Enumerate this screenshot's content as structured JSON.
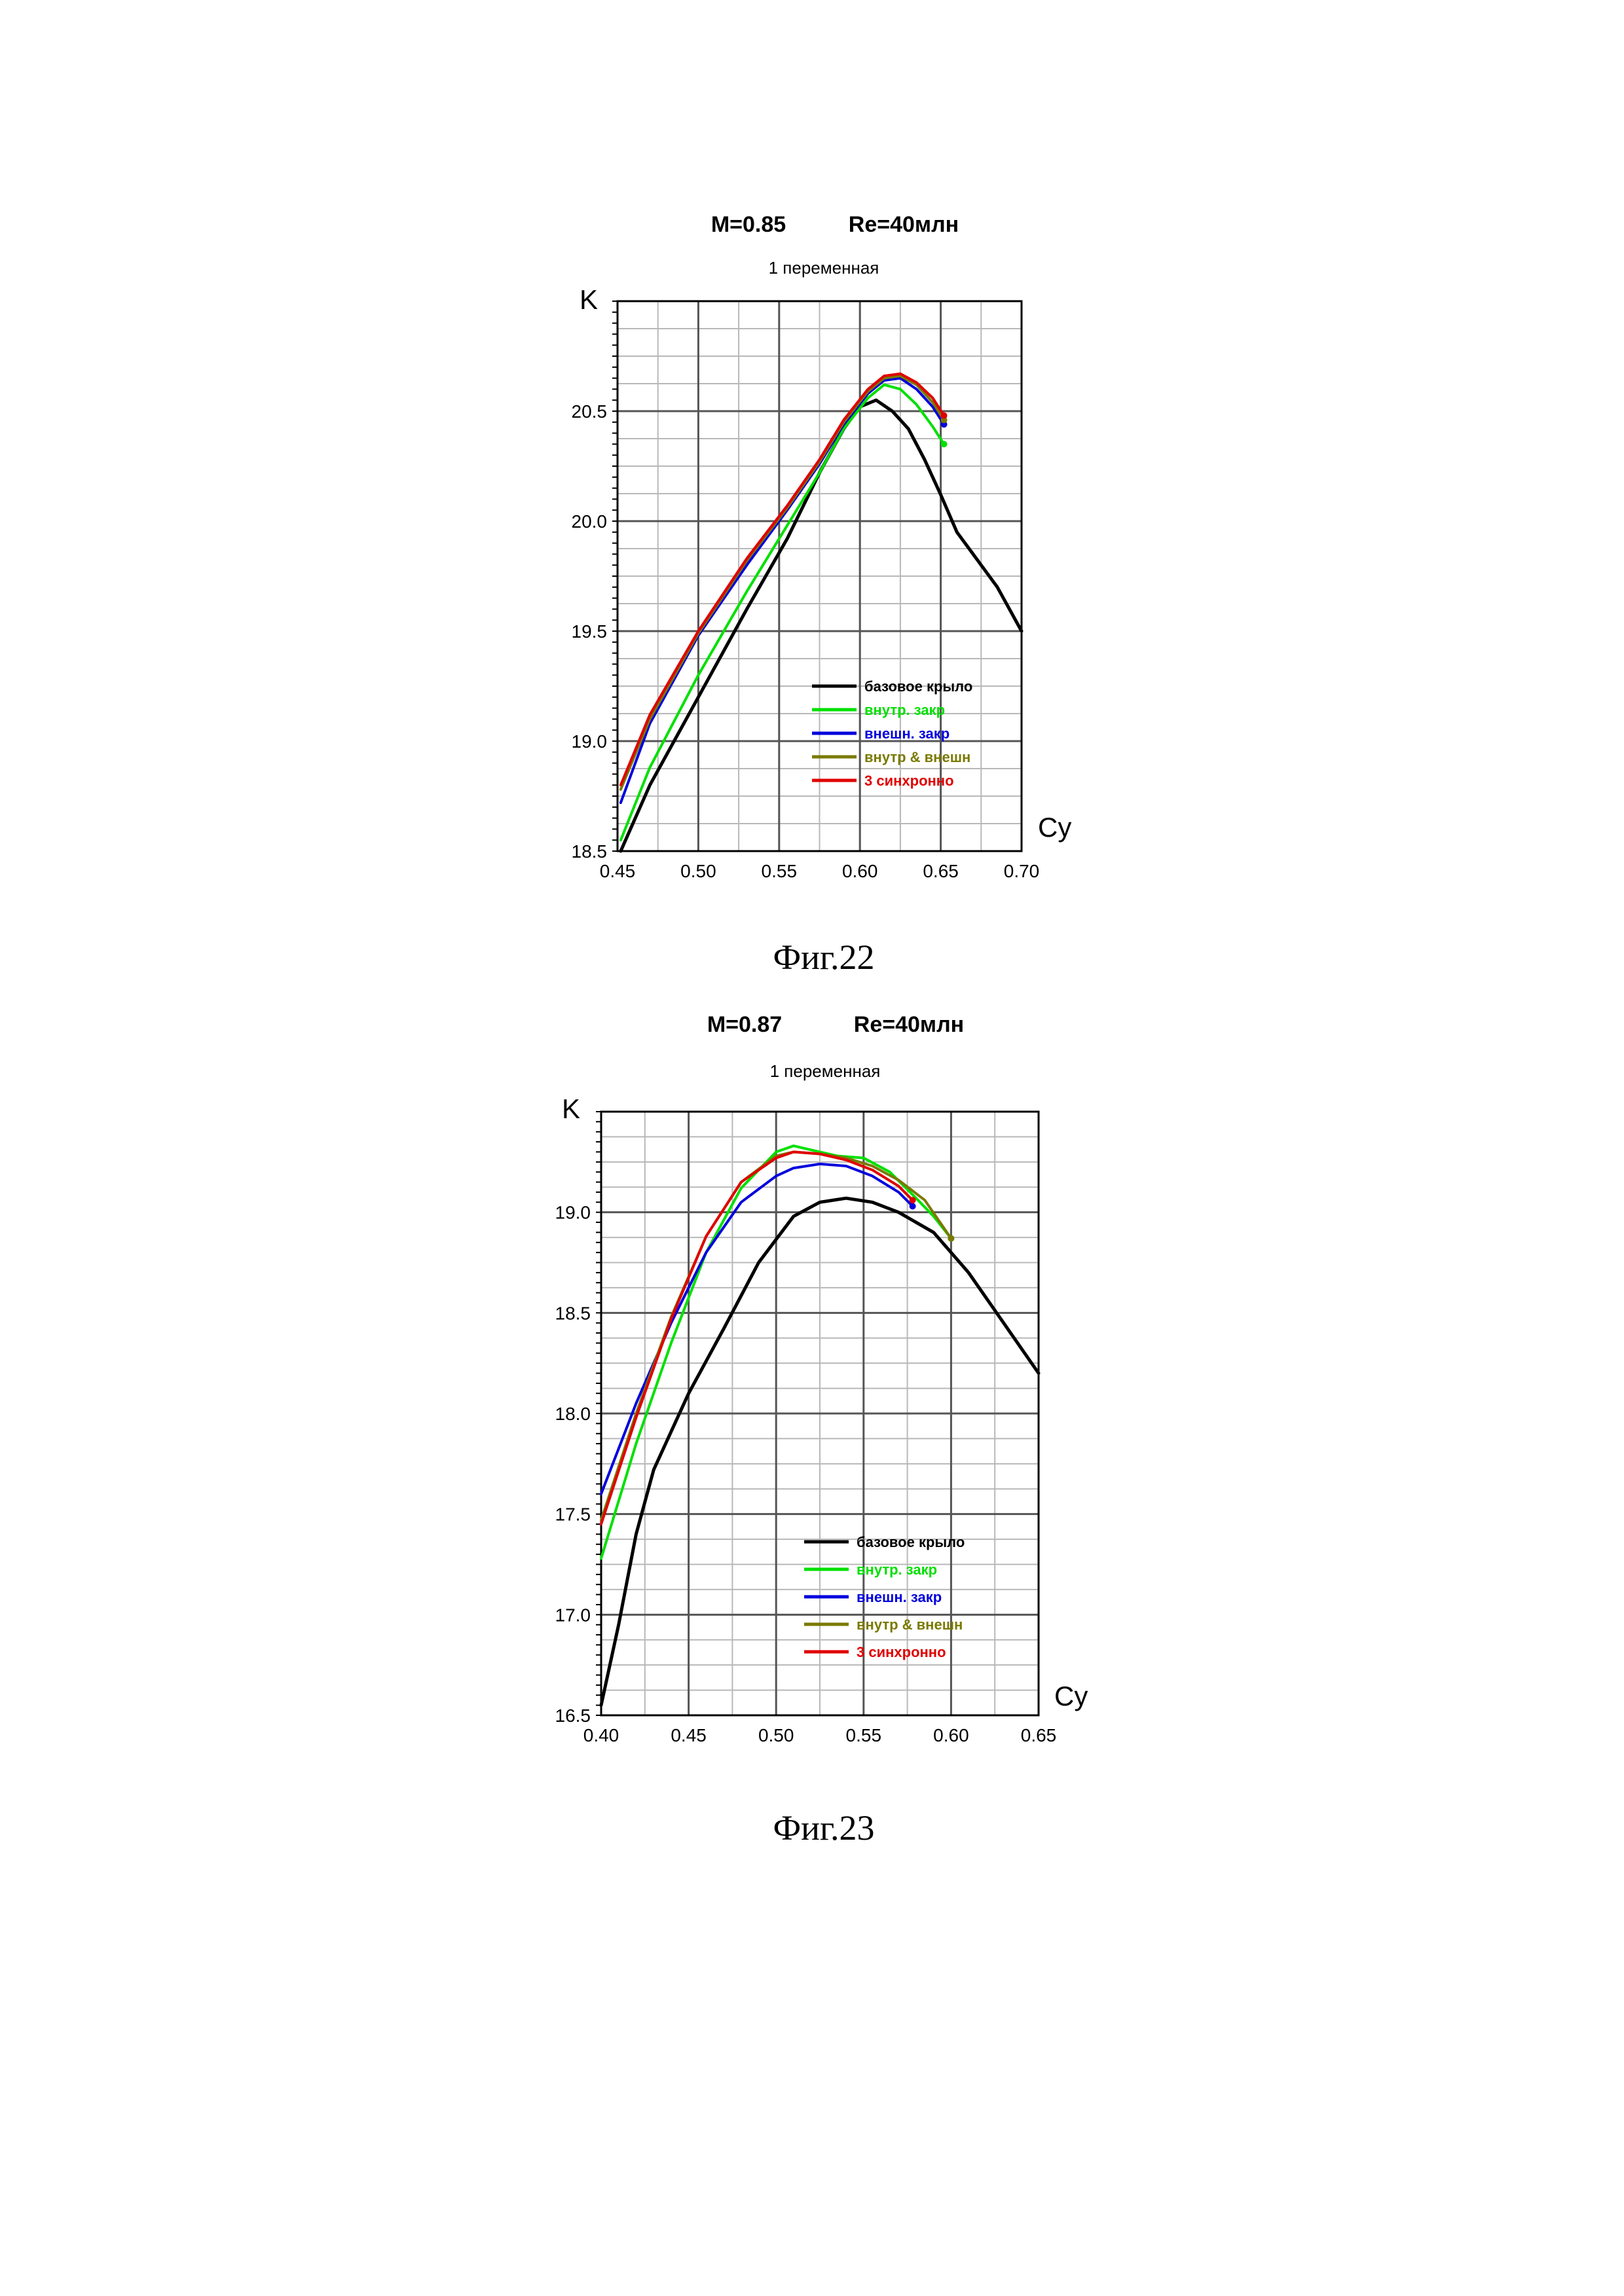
{
  "figures": [
    {
      "caption": "Фиг.22",
      "chart_data": {
        "type": "line",
        "title": "M=0.85",
        "title_right": "Re=40млн",
        "subtitle": "1 переменная",
        "xlabel": "Cy",
        "ylabel": "K",
        "xlim": [
          0.45,
          0.7
        ],
        "ylim": [
          18.5,
          21.0
        ],
        "xticks": [
          "0.45",
          "0.50",
          "0.55",
          "0.60",
          "0.65",
          "0.70"
        ],
        "yticks": [
          "18.5",
          "19.0",
          "19.5",
          "20.0",
          "20.5"
        ],
        "ytick_values": [
          18.5,
          19.0,
          19.5,
          20.0,
          20.5
        ],
        "grid": true,
        "legend_position": "lower-right",
        "series": [
          {
            "name": "базовое крыло",
            "color": "#000000",
            "points": [
              [
                0.452,
                18.5
              ],
              [
                0.47,
                18.8
              ],
              [
                0.5,
                19.2
              ],
              [
                0.53,
                19.6
              ],
              [
                0.555,
                19.92
              ],
              [
                0.575,
                20.22
              ],
              [
                0.59,
                20.42
              ],
              [
                0.6,
                20.52
              ],
              [
                0.61,
                20.55
              ],
              [
                0.62,
                20.5
              ],
              [
                0.63,
                20.42
              ],
              [
                0.64,
                20.28
              ],
              [
                0.65,
                20.12
              ],
              [
                0.66,
                19.95
              ],
              [
                0.67,
                19.85
              ],
              [
                0.685,
                19.7
              ],
              [
                0.7,
                19.5
              ]
            ]
          },
          {
            "name": "внутр. закр",
            "color": "#00e000",
            "points": [
              [
                0.452,
                18.55
              ],
              [
                0.47,
                18.88
              ],
              [
                0.5,
                19.3
              ],
              [
                0.53,
                19.68
              ],
              [
                0.555,
                19.98
              ],
              [
                0.575,
                20.22
              ],
              [
                0.59,
                20.42
              ],
              [
                0.605,
                20.56
              ],
              [
                0.615,
                20.62
              ],
              [
                0.625,
                20.6
              ],
              [
                0.635,
                20.53
              ],
              [
                0.645,
                20.43
              ],
              [
                0.652,
                20.35
              ]
            ]
          },
          {
            "name": "внешн. закр",
            "color": "#0000dd",
            "points": [
              [
                0.452,
                18.72
              ],
              [
                0.47,
                19.08
              ],
              [
                0.5,
                19.48
              ],
              [
                0.53,
                19.8
              ],
              [
                0.555,
                20.05
              ],
              [
                0.575,
                20.26
              ],
              [
                0.59,
                20.44
              ],
              [
                0.605,
                20.58
              ],
              [
                0.615,
                20.64
              ],
              [
                0.625,
                20.65
              ],
              [
                0.635,
                20.6
              ],
              [
                0.645,
                20.52
              ],
              [
                0.652,
                20.44
              ]
            ]
          },
          {
            "name": "внутр & внешн",
            "color": "#7a7a00",
            "points": [
              [
                0.452,
                18.78
              ],
              [
                0.47,
                19.1
              ],
              [
                0.5,
                19.49
              ],
              [
                0.53,
                19.82
              ],
              [
                0.555,
                20.06
              ],
              [
                0.575,
                20.27
              ],
              [
                0.59,
                20.45
              ],
              [
                0.605,
                20.59
              ],
              [
                0.615,
                20.65
              ],
              [
                0.625,
                20.66
              ],
              [
                0.635,
                20.62
              ],
              [
                0.645,
                20.54
              ],
              [
                0.652,
                20.46
              ]
            ]
          },
          {
            "name": "3 синхронно",
            "color": "#e00000",
            "points": [
              [
                0.452,
                18.8
              ],
              [
                0.47,
                19.12
              ],
              [
                0.5,
                19.5
              ],
              [
                0.53,
                19.83
              ],
              [
                0.555,
                20.07
              ],
              [
                0.575,
                20.28
              ],
              [
                0.59,
                20.46
              ],
              [
                0.605,
                20.6
              ],
              [
                0.615,
                20.66
              ],
              [
                0.625,
                20.67
              ],
              [
                0.635,
                20.63
              ],
              [
                0.645,
                20.56
              ],
              [
                0.652,
                20.48
              ]
            ]
          }
        ]
      }
    },
    {
      "caption": "Фиг.23",
      "chart_data": {
        "type": "line",
        "title": "M=0.87",
        "title_right": "Re=40млн",
        "subtitle": "1 переменная",
        "xlabel": "Cy",
        "ylabel": "K",
        "xlim": [
          0.4,
          0.65
        ],
        "ylim": [
          16.5,
          19.5
        ],
        "xticks": [
          "0.40",
          "0.45",
          "0.50",
          "0.55",
          "0.60",
          "0.65"
        ],
        "yticks": [
          "16.5",
          "17.0",
          "17.5",
          "18.0",
          "18.5",
          "19.0"
        ],
        "ytick_values": [
          16.5,
          17.0,
          17.5,
          18.0,
          18.5,
          19.0
        ],
        "grid": true,
        "legend_position": "lower-right",
        "series": [
          {
            "name": "базовое крыло",
            "color": "#000000",
            "points": [
              [
                0.4,
                16.55
              ],
              [
                0.41,
                16.95
              ],
              [
                0.42,
                17.4
              ],
              [
                0.43,
                17.72
              ],
              [
                0.45,
                18.1
              ],
              [
                0.47,
                18.42
              ],
              [
                0.49,
                18.75
              ],
              [
                0.51,
                18.98
              ],
              [
                0.525,
                19.05
              ],
              [
                0.54,
                19.07
              ],
              [
                0.555,
                19.05
              ],
              [
                0.57,
                19.0
              ],
              [
                0.59,
                18.9
              ],
              [
                0.61,
                18.7
              ],
              [
                0.63,
                18.45
              ],
              [
                0.65,
                18.2
              ]
            ]
          },
          {
            "name": "внутр. закр",
            "color": "#00e000",
            "points": [
              [
                0.4,
                17.28
              ],
              [
                0.42,
                17.85
              ],
              [
                0.44,
                18.35
              ],
              [
                0.46,
                18.8
              ],
              [
                0.48,
                19.12
              ],
              [
                0.5,
                19.3
              ],
              [
                0.51,
                19.33
              ],
              [
                0.52,
                19.31
              ],
              [
                0.535,
                19.28
              ],
              [
                0.55,
                19.27
              ],
              [
                0.565,
                19.2
              ],
              [
                0.58,
                19.07
              ],
              [
                0.59,
                18.98
              ],
              [
                0.6,
                18.87
              ]
            ]
          },
          {
            "name": "внешн. закр",
            "color": "#0000dd",
            "points": [
              [
                0.4,
                17.6
              ],
              [
                0.42,
                18.05
              ],
              [
                0.44,
                18.45
              ],
              [
                0.46,
                18.8
              ],
              [
                0.48,
                19.05
              ],
              [
                0.5,
                19.18
              ],
              [
                0.51,
                19.22
              ],
              [
                0.525,
                19.24
              ],
              [
                0.54,
                19.23
              ],
              [
                0.555,
                19.18
              ],
              [
                0.57,
                19.1
              ],
              [
                0.578,
                19.03
              ]
            ]
          },
          {
            "name": "внутр & внешн",
            "color": "#7a7a00",
            "points": [
              [
                0.4,
                17.47
              ],
              [
                0.42,
                18.0
              ],
              [
                0.44,
                18.48
              ],
              [
                0.46,
                18.88
              ],
              [
                0.48,
                19.15
              ],
              [
                0.5,
                19.28
              ],
              [
                0.51,
                19.3
              ],
              [
                0.525,
                19.29
              ],
              [
                0.54,
                19.27
              ],
              [
                0.555,
                19.23
              ],
              [
                0.57,
                19.16
              ],
              [
                0.585,
                19.06
              ],
              [
                0.6,
                18.87
              ]
            ]
          },
          {
            "name": "3 синхронно",
            "color": "#e00000",
            "points": [
              [
                0.4,
                17.45
              ],
              [
                0.42,
                17.98
              ],
              [
                0.44,
                18.47
              ],
              [
                0.46,
                18.88
              ],
              [
                0.48,
                19.15
              ],
              [
                0.5,
                19.27
              ],
              [
                0.51,
                19.3
              ],
              [
                0.525,
                19.29
              ],
              [
                0.54,
                19.26
              ],
              [
                0.555,
                19.21
              ],
              [
                0.57,
                19.13
              ],
              [
                0.578,
                19.06
              ]
            ]
          }
        ]
      }
    }
  ]
}
